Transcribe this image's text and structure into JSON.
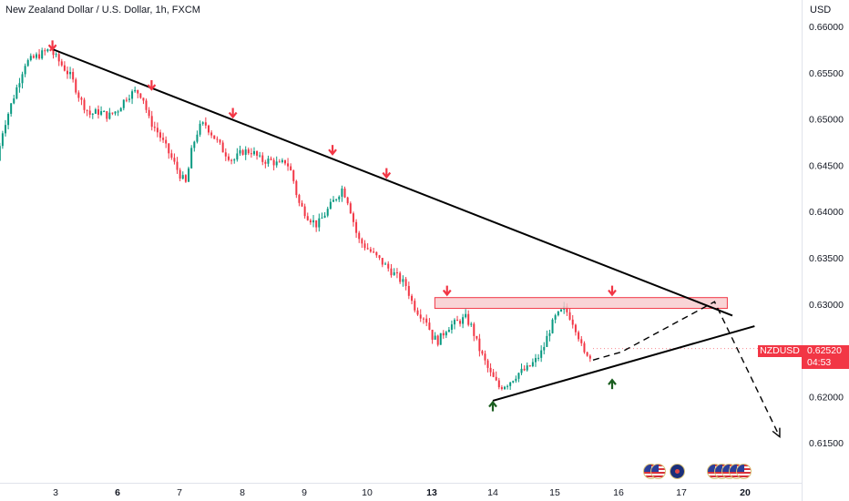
{
  "header": {
    "title": "New Zealand Dollar / U.S. Dollar, 1h, FXCM",
    "currency": "USD"
  },
  "price_label": {
    "symbol": "NZDUSD",
    "price": "0.62520",
    "countdown": "04:53"
  },
  "colors": {
    "up": "#089981",
    "down": "#f23645",
    "trendline": "#000000",
    "resistance_zone_fill": "#f7c9cc",
    "resistance_zone_border": "#f23645",
    "marker_down": "#f23645",
    "marker_up": "#1b5e20",
    "axis_text": "#131722"
  },
  "chart_data": {
    "type": "candlestick",
    "symbol": "NZDUSD",
    "interval": "1h",
    "source": "FXCM",
    "ylim": [
      0.613,
      0.661
    ],
    "y_ticks": [
      "0.66000",
      "0.65500",
      "0.65000",
      "0.64500",
      "0.64000",
      "0.63500",
      "0.63000",
      "0.62500",
      "0.62000",
      "0.61500"
    ],
    "x_ticks": [
      {
        "label": "3",
        "bold": false
      },
      {
        "label": "6",
        "bold": true
      },
      {
        "label": "7",
        "bold": false
      },
      {
        "label": "8",
        "bold": false
      },
      {
        "label": "9",
        "bold": false
      },
      {
        "label": "10",
        "bold": false
      },
      {
        "label": "13",
        "bold": true
      },
      {
        "label": "14",
        "bold": false
      },
      {
        "label": "15",
        "bold": false
      },
      {
        "label": "16",
        "bold": false
      },
      {
        "label": "17",
        "bold": false
      },
      {
        "label": "20",
        "bold": true
      }
    ],
    "x_tick_day": [
      0,
      1,
      2,
      3,
      4,
      5,
      6,
      7,
      8,
      9,
      10,
      11
    ],
    "price_path": [
      [
        -0.9,
        0.6455
      ],
      [
        -0.8,
        0.649
      ],
      [
        -0.6,
        0.653
      ],
      [
        -0.45,
        0.656
      ],
      [
        -0.25,
        0.6568
      ],
      [
        -0.05,
        0.6575
      ],
      [
        0.15,
        0.6558
      ],
      [
        0.3,
        0.6545
      ],
      [
        0.45,
        0.652
      ],
      [
        0.6,
        0.6505
      ],
      [
        0.75,
        0.6508
      ],
      [
        0.9,
        0.6503
      ],
      [
        1.05,
        0.651
      ],
      [
        1.2,
        0.6525
      ],
      [
        1.35,
        0.653
      ],
      [
        1.45,
        0.6525
      ],
      [
        1.55,
        0.65
      ],
      [
        1.7,
        0.6485
      ],
      [
        1.9,
        0.646
      ],
      [
        2.05,
        0.644
      ],
      [
        2.15,
        0.643
      ],
      [
        2.25,
        0.647
      ],
      [
        2.35,
        0.649
      ],
      [
        2.45,
        0.6495
      ],
      [
        2.6,
        0.648
      ],
      [
        2.75,
        0.6465
      ],
      [
        2.9,
        0.6455
      ],
      [
        3.05,
        0.6465
      ],
      [
        3.2,
        0.6465
      ],
      [
        3.35,
        0.6455
      ],
      [
        3.5,
        0.6455
      ],
      [
        3.65,
        0.645
      ],
      [
        3.75,
        0.6455
      ],
      [
        3.85,
        0.644
      ],
      [
        3.95,
        0.641
      ],
      [
        4.1,
        0.6395
      ],
      [
        4.25,
        0.6385
      ],
      [
        4.4,
        0.64
      ],
      [
        4.55,
        0.6415
      ],
      [
        4.65,
        0.6425
      ],
      [
        4.75,
        0.641
      ],
      [
        4.9,
        0.637
      ],
      [
        5.05,
        0.636
      ],
      [
        5.2,
        0.635
      ],
      [
        5.35,
        0.634
      ],
      [
        5.5,
        0.633
      ],
      [
        5.65,
        0.632
      ],
      [
        5.75,
        0.63
      ],
      [
        5.85,
        0.629
      ],
      [
        5.95,
        0.6285
      ],
      [
        6.05,
        0.6265
      ],
      [
        6.15,
        0.626
      ],
      [
        6.3,
        0.6275
      ],
      [
        6.45,
        0.628
      ],
      [
        6.6,
        0.6285
      ],
      [
        6.7,
        0.6275
      ],
      [
        6.8,
        0.6255
      ],
      [
        6.9,
        0.624
      ],
      [
        7.0,
        0.6225
      ],
      [
        7.15,
        0.621
      ],
      [
        7.3,
        0.6215
      ],
      [
        7.45,
        0.6225
      ],
      [
        7.6,
        0.623
      ],
      [
        7.75,
        0.624
      ],
      [
        7.85,
        0.625
      ],
      [
        7.95,
        0.627
      ],
      [
        8.05,
        0.6285
      ],
      [
        8.2,
        0.6295
      ],
      [
        8.3,
        0.6285
      ],
      [
        8.4,
        0.627
      ],
      [
        8.5,
        0.6245
      ],
      [
        8.55,
        0.6248
      ],
      [
        8.6,
        0.6242
      ]
    ],
    "up_day_ranges": [
      [
        -1.0,
        -0.05
      ],
      [
        1.05,
        1.35
      ],
      [
        2.15,
        2.45
      ],
      [
        3.05,
        3.25
      ],
      [
        4.3,
        4.7
      ],
      [
        6.15,
        6.55
      ],
      [
        7.25,
        7.9
      ],
      [
        7.95,
        8.2
      ]
    ],
    "trendlines": [
      {
        "name": "descending-resistance",
        "from": {
          "day": -0.05,
          "price": 0.65754
        },
        "to": {
          "day": 10.8,
          "price": 0.62876
        }
      },
      {
        "name": "ascending-support",
        "from": {
          "day": 7.0,
          "price": 0.61955
        },
        "to": {
          "day": 11.15,
          "price": 0.62761
        }
      }
    ],
    "resistance_zone": {
      "from_day": 6.05,
      "to_day": 10.72,
      "top": 0.6307,
      "bottom": 0.62953
    },
    "projection": [
      {
        "day": 8.6,
        "price": 0.62395
      },
      {
        "day": 9.05,
        "price": 0.62483
      },
      {
        "day": 10.52,
        "price": 0.63025
      },
      {
        "day": 11.55,
        "price": 0.61565
      }
    ],
    "markers_down": [
      {
        "day": -0.05,
        "price": 0.6578
      },
      {
        "day": 1.55,
        "price": 0.6535
      },
      {
        "day": 2.85,
        "price": 0.6505
      },
      {
        "day": 4.45,
        "price": 0.6465
      },
      {
        "day": 5.3,
        "price": 0.644
      },
      {
        "day": 6.25,
        "price": 0.6313
      },
      {
        "day": 8.9,
        "price": 0.6313
      }
    ],
    "markers_up": [
      {
        "day": 7.0,
        "price": 0.6191
      },
      {
        "day": 8.9,
        "price": 0.6215
      }
    ],
    "last_price": 0.6252
  }
}
